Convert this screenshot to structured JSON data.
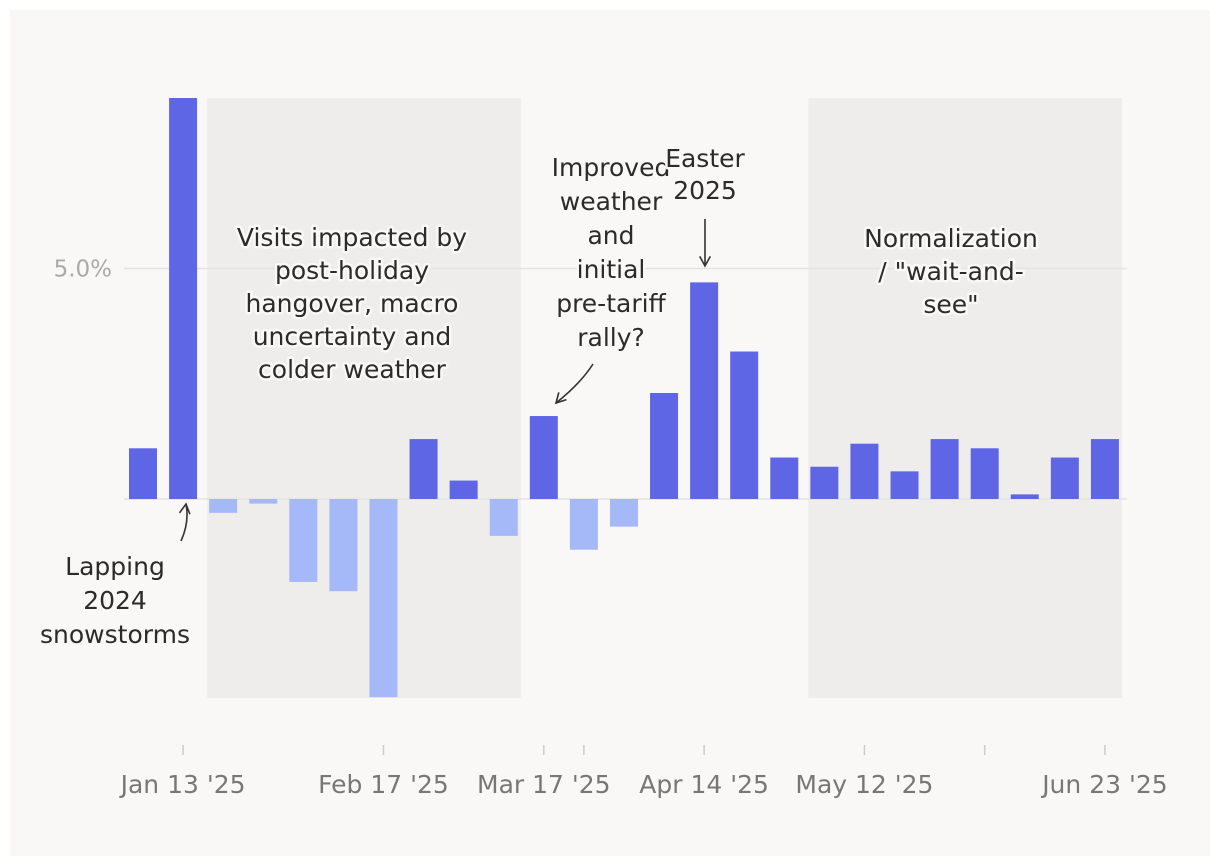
{
  "colors": {
    "page_bg": "#ffffff",
    "plot_bg": "#f9f8f7",
    "shade": "#eeedeb",
    "positive": "#5f66e6",
    "negative": "#a5b8f7",
    "gridline": "#e4e3e1",
    "tick_text": "#777777",
    "annotation_text": "#2b2b2b"
  },
  "chart_data": {
    "type": "bar",
    "title": "",
    "xlabel": "",
    "ylabel": "",
    "ylim": [
      -8.7,
      8.7
    ],
    "y_ticks": [
      {
        "value": 5.0,
        "label": "5.0%"
      }
    ],
    "x_tick_labels": [
      "Jan 13 '25",
      "Feb 17 '25",
      "Mar 17 '25",
      "Apr 14 '25",
      "May 12 '25",
      "Jun 23 '25"
    ],
    "categories": [
      "Jan 6 '25",
      "Jan 13 '25",
      "Jan 20 '25",
      "Jan 27 '25",
      "Feb 3 '25",
      "Feb 10 '25",
      "Feb 17 '25",
      "Feb 24 '25",
      "Mar 3 '25",
      "Mar 10 '25",
      "Mar 17 '25",
      "Mar 24 '25",
      "Mar 31 '25",
      "Apr 7 '25",
      "Apr 14 '25",
      "Apr 21 '25",
      "Apr 28 '25",
      "May 5 '25",
      "May 12 '25",
      "May 19 '25",
      "May 26 '25",
      "Jun 2 '25",
      "Jun 9 '25",
      "Jun 16 '25",
      "Jun 23 '25"
    ],
    "values": [
      1.1,
      8.7,
      -0.3,
      -0.1,
      -1.8,
      -2.0,
      -4.3,
      1.3,
      0.4,
      -0.8,
      1.8,
      -1.1,
      -0.6,
      2.3,
      4.7,
      3.2,
      0.9,
      0.7,
      1.2,
      0.6,
      1.3,
      1.1,
      0.1,
      0.9,
      1.3
    ],
    "shaded_periods": [
      {
        "label": "Visits impacted by post-holiday hangover, macro uncertainty and colder weather",
        "from": "Jan 20 '25",
        "to": "Mar 10 '25"
      },
      {
        "label": "Normalization / \"wait-and-see\"",
        "from": "May 5 '25",
        "to": "Jun 23 '25"
      }
    ],
    "annotations": [
      {
        "label": "Lapping 2024 snowstorms",
        "target": "Jan 13 '25"
      },
      {
        "label": "Improved weather and initial pre-tariff rally?",
        "target": "Mar 17 '25"
      },
      {
        "label": "Easter 2025",
        "target": "Apr 14 '25"
      }
    ]
  },
  "annotation_lines": {
    "shade1": [
      "Visits impacted by",
      "post-holiday",
      "hangover, macro",
      "uncertainty and",
      "colder weather"
    ],
    "shade2": [
      "Normalization",
      "/ \"wait-and-",
      "see\""
    ],
    "snow": [
      "Lapping",
      "2024",
      "snowstorms"
    ],
    "tariff": [
      "Improved",
      "weather",
      "and",
      "initial",
      "pre-tariff",
      "rally?"
    ],
    "easter": [
      "Easter",
      "2025"
    ]
  }
}
